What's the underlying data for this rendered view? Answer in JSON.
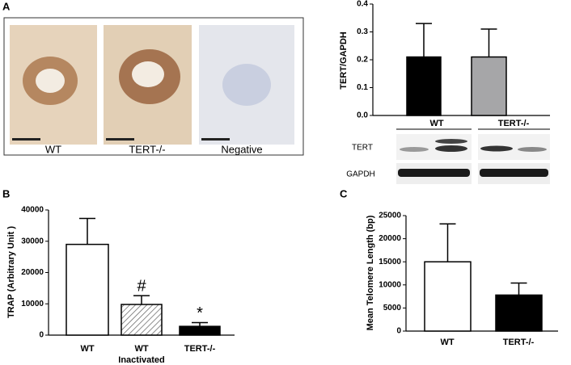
{
  "panel_labels": [
    "A",
    "B",
    "C"
  ],
  "micrographs": {
    "labels": [
      "WT",
      "TERT-/-",
      "Negative"
    ]
  },
  "blot": {
    "labels": [
      "TERT",
      "GAPDH"
    ]
  },
  "chart_data": [
    {
      "type": "bar",
      "ylabel": "TERT/GAPDH",
      "categories": [
        "WT",
        "TERT-/-"
      ],
      "values": [
        0.21,
        0.21
      ],
      "errors": [
        0.12,
        0.1
      ],
      "fills": [
        "#000000",
        "#a6a6a8"
      ],
      "ylim": [
        0,
        0.4
      ],
      "yticks": [
        {
          "value": 0,
          "label": "0.0"
        },
        0.1,
        0.2,
        0.3,
        0.4
      ]
    },
    {
      "type": "bar",
      "ylabel": "TRAP (Arbitrary Unit )",
      "xlabel": "Inactivated",
      "categories": [
        "WT",
        "WT",
        "TERT-/-"
      ],
      "values": [
        29000,
        9800,
        2800
      ],
      "errors": [
        8300,
        2800,
        1200
      ],
      "fills": [
        "#ffffff",
        "hatched",
        "#000000"
      ],
      "markers": [
        null,
        "#",
        "*"
      ],
      "ylim": [
        0,
        40000
      ],
      "yticks": [
        0,
        10000,
        20000,
        30000,
        40000
      ]
    },
    {
      "type": "bar",
      "ylabel": "Mean Telomere Length (bp)",
      "categories": [
        "WT",
        "TERT-/-"
      ],
      "values": [
        15000,
        7800
      ],
      "errors": [
        8200,
        2600
      ],
      "fills": [
        "#ffffff",
        "#000000"
      ],
      "ylim": [
        0,
        25000
      ],
      "yticks": [
        0,
        5000,
        10000,
        15000,
        20000,
        25000
      ]
    }
  ]
}
